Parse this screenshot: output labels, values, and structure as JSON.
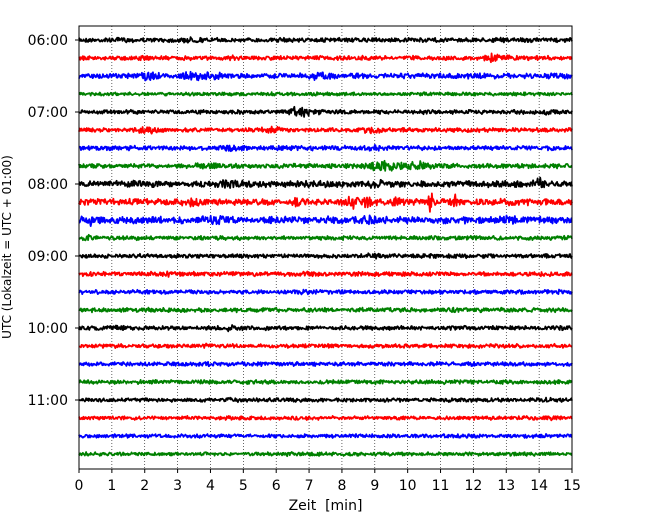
{
  "chart_data": {
    "type": "line",
    "title": "",
    "xlabel": "Zeit  [min]",
    "ylabel": "UTC (Lokalzeit = UTC + 01:00)",
    "xlim": [
      0,
      15
    ],
    "x_ticks": [
      "0",
      "1",
      "2",
      "3",
      "4",
      "5",
      "6",
      "7",
      "8",
      "9",
      "10",
      "11",
      "12",
      "13",
      "14",
      "15"
    ],
    "y_ticks": [
      "06:00",
      "07:00",
      "08:00",
      "09:00",
      "10:00",
      "11:00"
    ],
    "grid": "vertical dotted lines at each minute",
    "legend": "none",
    "trace_interval_minutes": 15,
    "trace_start": "06:00",
    "trace_count": 24,
    "trace_colors": [
      "#000000",
      "#ff0000",
      "#0000ff",
      "#008000"
    ],
    "traces": [
      {
        "start": "06:00",
        "color": "#000000",
        "amp": 0.15,
        "bursts": [
          [
            3.4,
            0.3,
            1.6
          ],
          [
            12.5,
            0.4,
            1.0
          ]
        ]
      },
      {
        "start": "06:15",
        "color": "#ff0000",
        "amp": 0.15,
        "bursts": [
          [
            4.7,
            0.15,
            1.5
          ],
          [
            12.6,
            0.3,
            2.2
          ],
          [
            13.1,
            0.2,
            1.4
          ]
        ]
      },
      {
        "start": "06:30",
        "color": "#0000ff",
        "amp": 0.18,
        "bursts": [
          [
            2.1,
            0.3,
            1.9
          ],
          [
            3.4,
            0.3,
            1.8
          ],
          [
            4.0,
            0.3,
            1.6
          ],
          [
            7.4,
            0.3,
            1.9
          ]
        ]
      },
      {
        "start": "06:45",
        "color": "#008000",
        "amp": 0.12,
        "bursts": [
          [
            7.2,
            0.2,
            1.2
          ]
        ]
      },
      {
        "start": "07:00",
        "color": "#000000",
        "amp": 0.14,
        "bursts": [
          [
            6.6,
            0.3,
            2.6
          ],
          [
            6.95,
            0.3,
            1.6
          ],
          [
            14.3,
            0.2,
            1.6
          ]
        ]
      },
      {
        "start": "07:15",
        "color": "#ff0000",
        "amp": 0.14,
        "bursts": [
          [
            2.1,
            0.3,
            2.0
          ],
          [
            5.9,
            0.3,
            2.0
          ],
          [
            8.9,
            0.3,
            2.1
          ]
        ]
      },
      {
        "start": "07:30",
        "color": "#0000ff",
        "amp": 0.16,
        "bursts": [
          [
            4.6,
            0.3,
            1.6
          ],
          [
            8.9,
            0.3,
            1.8
          ]
        ]
      },
      {
        "start": "07:45",
        "color": "#008000",
        "amp": 0.16,
        "bursts": [
          [
            3.9,
            0.3,
            1.7
          ],
          [
            9.2,
            0.5,
            2.4
          ],
          [
            10.2,
            0.4,
            2.2
          ]
        ]
      },
      {
        "start": "08:00",
        "color": "#000000",
        "amp": 0.22,
        "bursts": [
          [
            4.6,
            0.3,
            1.8
          ],
          [
            9.0,
            0.4,
            1.4
          ],
          [
            14.0,
            0.15,
            2.6
          ]
        ]
      },
      {
        "start": "08:15",
        "color": "#ff0000",
        "amp": 0.22,
        "bursts": [
          [
            3.5,
            0.12,
            2.4
          ],
          [
            6.7,
            0.15,
            1.6
          ],
          [
            8.3,
            0.2,
            2.1
          ],
          [
            8.8,
            0.12,
            2.6
          ],
          [
            9.6,
            0.12,
            2.0
          ],
          [
            10.7,
            0.1,
            3.3
          ],
          [
            11.5,
            0.1,
            3.0
          ]
        ]
      },
      {
        "start": "08:30",
        "color": "#0000ff",
        "amp": 0.24,
        "bursts": [
          [
            0.3,
            0.25,
            1.8
          ],
          [
            4.3,
            0.3,
            1.7
          ],
          [
            8.8,
            0.3,
            1.4
          ],
          [
            13.2,
            0.3,
            1.5
          ]
        ]
      },
      {
        "start": "08:45",
        "color": "#008000",
        "amp": 0.14,
        "bursts": [
          [
            0.3,
            0.2,
            1.7
          ]
        ]
      },
      {
        "start": "09:00",
        "color": "#000000",
        "amp": 0.14,
        "bursts": [
          [
            8.9,
            0.3,
            1.4
          ]
        ]
      },
      {
        "start": "09:15",
        "color": "#ff0000",
        "amp": 0.15,
        "bursts": [
          [
            2.7,
            0.25,
            1.4
          ],
          [
            7.1,
            0.25,
            1.4
          ]
        ]
      },
      {
        "start": "09:30",
        "color": "#0000ff",
        "amp": 0.14,
        "bursts": [
          [
            7.1,
            0.3,
            1.3
          ],
          [
            14.6,
            0.2,
            1.5
          ]
        ]
      },
      {
        "start": "09:45",
        "color": "#008000",
        "amp": 0.15,
        "bursts": [
          [
            11.5,
            0.3,
            1.3
          ]
        ]
      },
      {
        "start": "10:00",
        "color": "#000000",
        "amp": 0.14,
        "bursts": [
          [
            1.2,
            0.25,
            1.8
          ],
          [
            4.5,
            0.25,
            1.6
          ],
          [
            14.6,
            0.2,
            1.4
          ]
        ]
      },
      {
        "start": "10:15",
        "color": "#ff0000",
        "amp": 0.14,
        "bursts": [
          [
            4.0,
            0.3,
            1.2
          ]
        ]
      },
      {
        "start": "10:30",
        "color": "#0000ff",
        "amp": 0.14,
        "bursts": [
          [
            3.9,
            0.3,
            1.2
          ]
        ]
      },
      {
        "start": "10:45",
        "color": "#008000",
        "amp": 0.14,
        "bursts": [
          [
            8.8,
            0.2,
            1.3
          ]
        ]
      },
      {
        "start": "11:00",
        "color": "#000000",
        "amp": 0.13,
        "bursts": [
          [
            4.6,
            0.2,
            1.5
          ],
          [
            14.2,
            0.2,
            1.5
          ]
        ]
      },
      {
        "start": "11:15",
        "color": "#ff0000",
        "amp": 0.13,
        "bursts": [
          [
            4.7,
            0.2,
            1.3
          ],
          [
            14.3,
            0.2,
            1.4
          ]
        ]
      },
      {
        "start": "11:30",
        "color": "#0000ff",
        "amp": 0.13,
        "bursts": [
          [
            11.9,
            0.2,
            1.3
          ]
        ]
      },
      {
        "start": "11:45",
        "color": "#008000",
        "amp": 0.13,
        "bursts": [
          [
            6.5,
            0.25,
            1.2
          ]
        ]
      }
    ]
  }
}
